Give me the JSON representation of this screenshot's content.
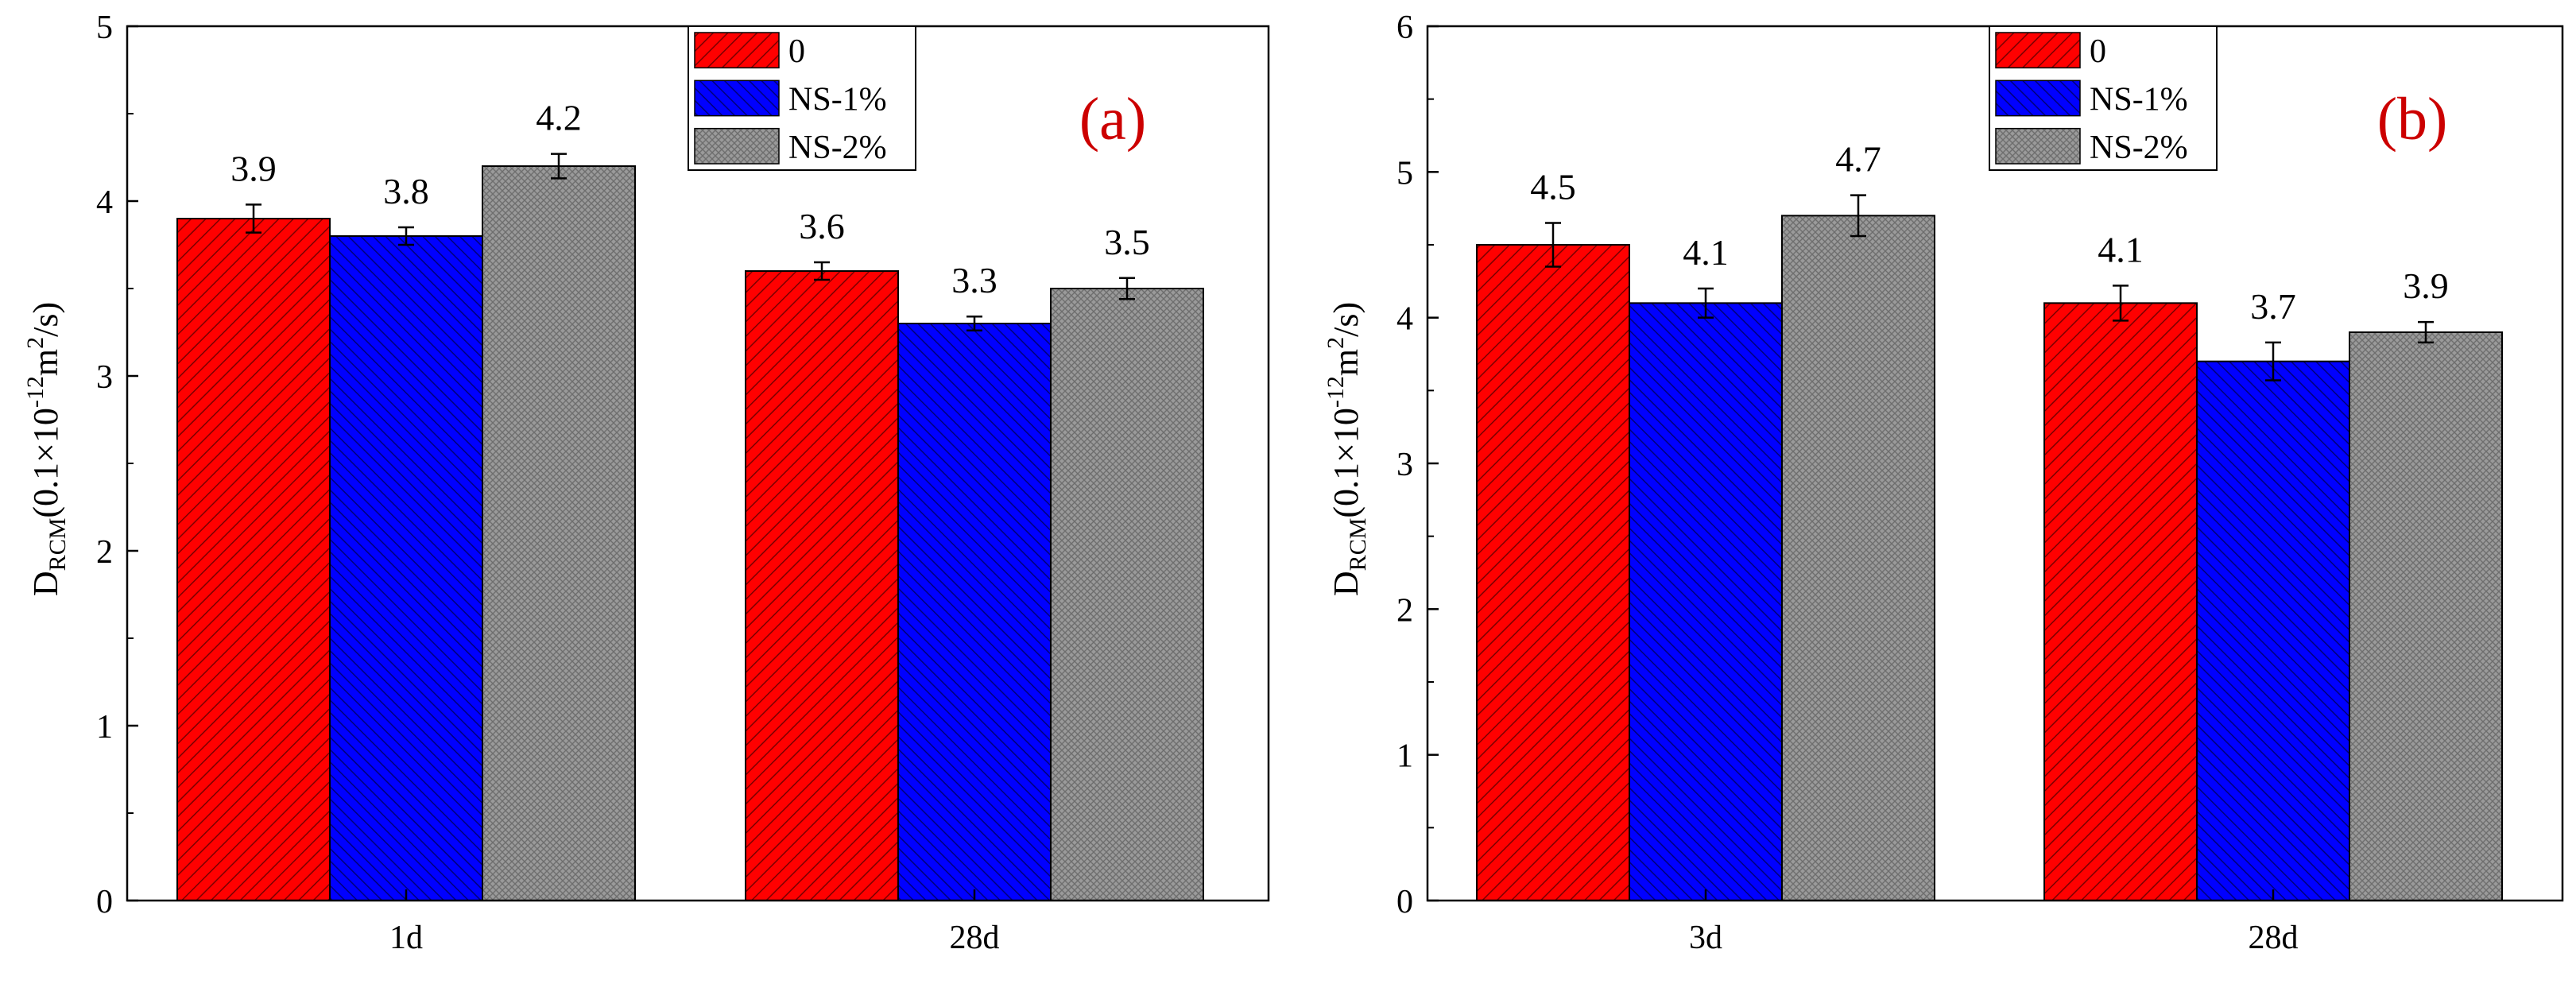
{
  "colors": {
    "series_0": "#ff0000",
    "series_ns1": "#0000ff",
    "series_ns2": "#999999",
    "axis": "#000000",
    "panel_label": "#cc0000"
  },
  "chart_data": [
    {
      "type": "bar",
      "panel_label": "(a)",
      "ylabel_main": "D",
      "ylabel_sub": "RCM",
      "ylabel_pre": "(0.1×10",
      "ylabel_exp1": "-12",
      "ylabel_mid": "m",
      "ylabel_exp2": "2",
      "ylabel_post": "/s)",
      "categories": [
        "1d",
        "28d"
      ],
      "ylim": [
        0,
        5
      ],
      "yticks": [
        "0",
        "1",
        "2",
        "3",
        "4",
        "5"
      ],
      "series": [
        {
          "name": "0",
          "values": [
            3.9,
            3.6
          ],
          "errors": [
            0.08,
            0.05
          ],
          "labels": [
            "3.9",
            "3.6"
          ]
        },
        {
          "name": "NS-1%",
          "values": [
            3.8,
            3.3
          ],
          "errors": [
            0.05,
            0.04
          ],
          "labels": [
            "3.8",
            "3.3"
          ]
        },
        {
          "name": "NS-2%",
          "values": [
            4.2,
            3.5
          ],
          "errors": [
            0.07,
            0.06
          ],
          "labels": [
            "4.2",
            "3.5"
          ]
        }
      ]
    },
    {
      "type": "bar",
      "panel_label": "(b)",
      "ylabel_main": "D",
      "ylabel_sub": "RCM",
      "ylabel_pre": "(0.1×10",
      "ylabel_exp1": "-12",
      "ylabel_mid": "m",
      "ylabel_exp2": "2",
      "ylabel_post": "/s)",
      "categories": [
        "3d",
        "28d"
      ],
      "ylim": [
        0,
        6
      ],
      "yticks": [
        "0",
        "1",
        "2",
        "3",
        "4",
        "5",
        "6"
      ],
      "series": [
        {
          "name": "0",
          "values": [
            4.5,
            4.1
          ],
          "errors": [
            0.15,
            0.12
          ],
          "labels": [
            "4.5",
            "4.1"
          ]
        },
        {
          "name": "NS-1%",
          "values": [
            4.1,
            3.7
          ],
          "errors": [
            0.1,
            0.13
          ],
          "labels": [
            "4.1",
            "3.7"
          ]
        },
        {
          "name": "NS-2%",
          "values": [
            4.7,
            3.9
          ],
          "errors": [
            0.14,
            0.07
          ],
          "labels": [
            "4.7",
            "3.9"
          ]
        }
      ]
    }
  ]
}
